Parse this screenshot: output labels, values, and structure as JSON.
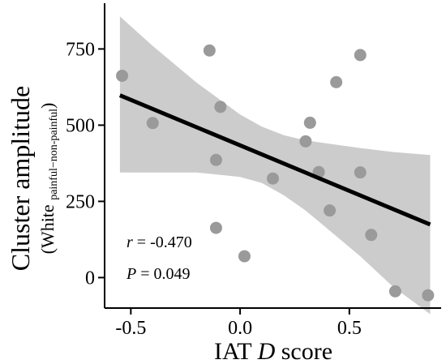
{
  "chart_data": {
    "type": "scatter",
    "xlabel": {
      "prefix": "IAT ",
      "italic": "D",
      "suffix": " score"
    },
    "ylabel": {
      "line1": "Cluster amplitude",
      "line2_open": "(White ",
      "line2_sub": "painful−non-painful",
      "line2_close": ")"
    },
    "xlim": [
      -0.62,
      0.92
    ],
    "ylim": [
      -100,
      900
    ],
    "x_ticks": [
      -0.5,
      0.0,
      0.5
    ],
    "x_tick_labels": [
      "-0.5",
      "0.0",
      "0.5"
    ],
    "y_ticks": [
      0,
      250,
      500,
      750
    ],
    "y_tick_labels": [
      "0",
      "250",
      "500",
      "750"
    ],
    "grid": false,
    "points": [
      {
        "x": -0.54,
        "y": 662
      },
      {
        "x": -0.4,
        "y": 507
      },
      {
        "x": -0.14,
        "y": 745
      },
      {
        "x": -0.09,
        "y": 560
      },
      {
        "x": -0.11,
        "y": 386
      },
      {
        "x": -0.11,
        "y": 163
      },
      {
        "x": 0.02,
        "y": 70
      },
      {
        "x": 0.15,
        "y": 325
      },
      {
        "x": 0.3,
        "y": 447
      },
      {
        "x": 0.32,
        "y": 508
      },
      {
        "x": 0.36,
        "y": 346
      },
      {
        "x": 0.41,
        "y": 220
      },
      {
        "x": 0.44,
        "y": 641
      },
      {
        "x": 0.55,
        "y": 730
      },
      {
        "x": 0.55,
        "y": 345
      },
      {
        "x": 0.6,
        "y": 140
      },
      {
        "x": 0.71,
        "y": -45
      },
      {
        "x": 0.86,
        "y": -58
      }
    ],
    "fit_line": {
      "x": [
        -0.55,
        0.87
      ],
      "y": [
        598,
        174
      ]
    },
    "confidence_band": {
      "x": [
        -0.55,
        -0.4,
        -0.2,
        0.0,
        0.1,
        0.2,
        0.3,
        0.4,
        0.55,
        0.7,
        0.87
      ],
      "lower": [
        345,
        345,
        345,
        330,
        310,
        270,
        220,
        160,
        70,
        -30,
        -120
      ],
      "upper": [
        857,
        760,
        640,
        535,
        495,
        467,
        450,
        440,
        425,
        412,
        402
      ]
    },
    "colors": {
      "points": "#9a9a9a",
      "band": "#cccccc",
      "line": "#000000"
    },
    "annotations": {
      "r_label": "r",
      "r_value": " = -0.470",
      "p_label": "P",
      "p_value": " = 0.049"
    }
  }
}
